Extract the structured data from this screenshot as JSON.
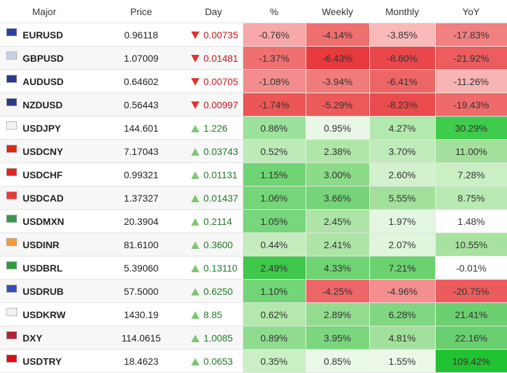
{
  "headers": {
    "major": "Major",
    "price": "Price",
    "day": "Day",
    "pct": "%",
    "weekly": "Weekly",
    "monthly": "Monthly",
    "yoy": "YoY"
  },
  "rows": [
    {
      "symbol": "EURUSD",
      "price": "0.96118",
      "day": "0.00735",
      "dir": "down",
      "pct": "-0.76%",
      "weekly": "-4.14%",
      "monthly": "-3.85%",
      "yoy": "-17.83%",
      "flag": "eu-flag",
      "flag_color": "#2a3f9e",
      "colors": [
        "#f7a8a8",
        "#ef6f6f",
        "#f9b9b9",
        "#f18080"
      ]
    },
    {
      "symbol": "GBPUSD",
      "price": "1.07009",
      "day": "0.01481",
      "dir": "down",
      "pct": "-1.37%",
      "weekly": "-6.43%",
      "monthly": "-8.60%",
      "yoy": "-21.92%",
      "flag": "uk-flag",
      "flag_color": "#c8d0e6",
      "colors": [
        "#f07070",
        "#e8393d",
        "#e9474a",
        "#ed5c5e"
      ]
    },
    {
      "symbol": "AUDUSD",
      "price": "0.64602",
      "day": "0.00705",
      "dir": "down",
      "pct": "-1.08%",
      "weekly": "-3.94%",
      "monthly": "-6.41%",
      "yoy": "-11.26%",
      "flag": "au-flag",
      "flag_color": "#283c8c",
      "colors": [
        "#f38d8d",
        "#f17b7b",
        "#ee6565",
        "#f8b3b3"
      ]
    },
    {
      "symbol": "NZDUSD",
      "price": "0.56443",
      "day": "0.00997",
      "dir": "down",
      "pct": "-1.74%",
      "weekly": "-5.29%",
      "monthly": "-8.23%",
      "yoy": "-19.43%",
      "flag": "nz-flag",
      "flag_color": "#283c8c",
      "colors": [
        "#ec5656",
        "#ed5a5a",
        "#ea4b4d",
        "#ef6a6a"
      ]
    },
    {
      "symbol": "USDJPY",
      "price": "144.601",
      "day": "1.226",
      "dir": "up",
      "pct": "0.86%",
      "weekly": "0.95%",
      "monthly": "4.27%",
      "yoy": "30.29%",
      "flag": "jp-flag",
      "flag_color": "#f2f2f2",
      "colors": [
        "#9de29c",
        "#e9f8e6",
        "#b4e9ad",
        "#3fcb4b"
      ]
    },
    {
      "symbol": "USDCNY",
      "price": "7.17043",
      "day": "0.03743",
      "dir": "up",
      "pct": "0.52%",
      "weekly": "2.38%",
      "monthly": "3.70%",
      "yoy": "11.00%",
      "flag": "cn-flag",
      "flag_color": "#de2910",
      "colors": [
        "#bdebb7",
        "#b0e6a8",
        "#c0ebba",
        "#a3e09b"
      ]
    },
    {
      "symbol": "USDCHF",
      "price": "0.99321",
      "day": "0.01131",
      "dir": "up",
      "pct": "1.15%",
      "weekly": "3.00%",
      "monthly": "2.60%",
      "yoy": "7.28%",
      "flag": "ch-flag",
      "flag_color": "#e02424",
      "colors": [
        "#6fd474",
        "#8bdb89",
        "#d2f1cd",
        "#c9efc3"
      ]
    },
    {
      "symbol": "USDCAD",
      "price": "1.37327",
      "day": "0.01437",
      "dir": "up",
      "pct": "1.06%",
      "weekly": "3.66%",
      "monthly": "5.55%",
      "yoy": "8.75%",
      "flag": "ca-flag",
      "flag_color": "#e83a3a",
      "colors": [
        "#75d679",
        "#75d47a",
        "#a3e09b",
        "#baeab3"
      ]
    },
    {
      "symbol": "USDMXN",
      "price": "20.3904",
      "day": "0.2114",
      "dir": "up",
      "pct": "1.05%",
      "weekly": "2.45%",
      "monthly": "1.97%",
      "yoy": "1.48%",
      "flag": "mx-flag",
      "flag_color": "#3a9a4a",
      "colors": [
        "#78d67c",
        "#aee5a7",
        "#e4f7e1",
        "#ffffff"
      ]
    },
    {
      "symbol": "USDINR",
      "price": "81.6100",
      "day": "0.3600",
      "dir": "up",
      "pct": "0.44%",
      "weekly": "2.41%",
      "monthly": "2.07%",
      "yoy": "10.55%",
      "flag": "in-flag",
      "flag_color": "#f29a38",
      "colors": [
        "#c4ecbd",
        "#aee5a7",
        "#e0f5dc",
        "#a8e2a1"
      ]
    },
    {
      "symbol": "USDBRL",
      "price": "5.39060",
      "day": "0.13110",
      "dir": "up",
      "pct": "2.49%",
      "weekly": "4.33%",
      "monthly": "7.21%",
      "yoy": "-0.01%",
      "flag": "br-flag",
      "flag_color": "#2f9a3f",
      "colors": [
        "#3fc84a",
        "#6fd474",
        "#6bd270",
        "#ffffff"
      ]
    },
    {
      "symbol": "USDRUB",
      "price": "57.5000",
      "day": "0.6250",
      "dir": "up",
      "pct": "1.10%",
      "weekly": "-4.25%",
      "monthly": "-4.96%",
      "yoy": "-20.75%",
      "flag": "ru-flag",
      "flag_color": "#3350b8",
      "colors": [
        "#72d577",
        "#ee6767",
        "#f58e8e",
        "#ec5c5c"
      ]
    },
    {
      "symbol": "USDKRW",
      "price": "1430.19",
      "day": "8.85",
      "dir": "up",
      "pct": "0.62%",
      "weekly": "2.89%",
      "monthly": "6.28%",
      "yoy": "21.41%",
      "flag": "kr-flag",
      "flag_color": "#f2f2f2",
      "colors": [
        "#b4e8ad",
        "#93dc8f",
        "#80d681",
        "#6bd070"
      ]
    },
    {
      "symbol": "DXY",
      "price": "114.0615",
      "day": "1.0085",
      "dir": "up",
      "pct": "0.89%",
      "weekly": "3.95%",
      "monthly": "4.81%",
      "yoy": "22.16%",
      "flag": "us-flag",
      "flag_color": "#b22234",
      "colors": [
        "#90dc8f",
        "#7ad77d",
        "#a3e09b",
        "#68d06e"
      ]
    },
    {
      "symbol": "USDTRY",
      "price": "18.4623",
      "day": "0.0653",
      "dir": "up",
      "pct": "0.35%",
      "weekly": "0.85%",
      "monthly": "1.55%",
      "yoy": "109.42%",
      "flag": "tr-flag",
      "flag_color": "#e30a17",
      "colors": [
        "#caefc4",
        "#eaf9e7",
        "#ecf9e9",
        "#22c332"
      ]
    }
  ]
}
